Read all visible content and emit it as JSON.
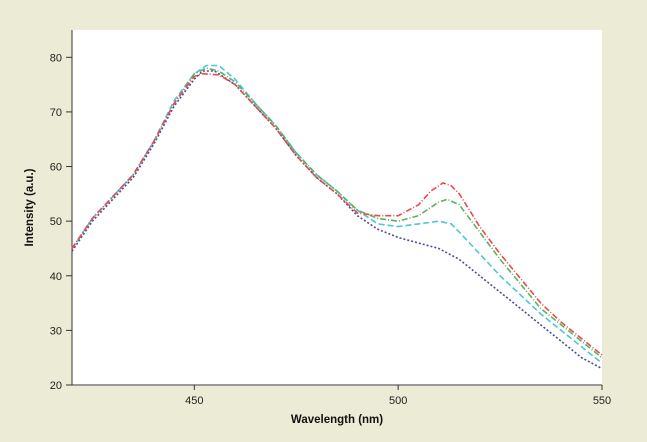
{
  "chart_data": {
    "type": "line",
    "title": "",
    "xlabel": "Wavelength (nm)",
    "ylabel": "Intensity (a.u.)",
    "xlim": [
      420,
      550
    ],
    "ylim": [
      20,
      85
    ],
    "x_ticks": [
      450,
      500,
      550
    ],
    "y_ticks": [
      20,
      30,
      40,
      50,
      60,
      70,
      80
    ],
    "grid": false,
    "legend": "none",
    "series": [
      {
        "color": "#4b4b9c",
        "dash": "2,2",
        "points": [
          [
            420,
            44.5
          ],
          [
            425,
            50
          ],
          [
            430,
            54
          ],
          [
            435,
            58
          ],
          [
            440,
            64
          ],
          [
            445,
            71
          ],
          [
            450,
            76
          ],
          [
            452,
            77.5
          ],
          [
            455,
            77.5
          ],
          [
            460,
            75
          ],
          [
            465,
            71
          ],
          [
            470,
            67
          ],
          [
            475,
            62
          ],
          [
            480,
            58
          ],
          [
            485,
            55
          ],
          [
            490,
            51
          ],
          [
            495,
            48.5
          ],
          [
            500,
            47
          ],
          [
            505,
            46
          ],
          [
            510,
            45
          ],
          [
            515,
            43
          ],
          [
            520,
            40
          ],
          [
            525,
            37
          ],
          [
            530,
            34
          ],
          [
            535,
            31
          ],
          [
            540,
            28
          ],
          [
            545,
            25
          ],
          [
            550,
            23
          ]
        ]
      },
      {
        "color": "#4cc6d8",
        "dash": "6,3",
        "points": [
          [
            420,
            45
          ],
          [
            425,
            50.5
          ],
          [
            430,
            54.5
          ],
          [
            435,
            58.5
          ],
          [
            440,
            64.5
          ],
          [
            445,
            72
          ],
          [
            450,
            77
          ],
          [
            453,
            78.5
          ],
          [
            456,
            78.5
          ],
          [
            460,
            76
          ],
          [
            465,
            71.5
          ],
          [
            470,
            67.5
          ],
          [
            475,
            62.5
          ],
          [
            480,
            58.5
          ],
          [
            485,
            55.5
          ],
          [
            490,
            52
          ],
          [
            495,
            49.5
          ],
          [
            500,
            49
          ],
          [
            505,
            49.5
          ],
          [
            510,
            50
          ],
          [
            513,
            49.5
          ],
          [
            515,
            48
          ],
          [
            520,
            44
          ],
          [
            525,
            40
          ],
          [
            530,
            36.5
          ],
          [
            535,
            33
          ],
          [
            540,
            30
          ],
          [
            545,
            27
          ],
          [
            550,
            24
          ]
        ]
      },
      {
        "color": "#5cb25c",
        "dash": "6,2,1,2",
        "points": [
          [
            420,
            45
          ],
          [
            425,
            50.5
          ],
          [
            430,
            54.5
          ],
          [
            435,
            58.5
          ],
          [
            440,
            64.5
          ],
          [
            445,
            71.5
          ],
          [
            450,
            77
          ],
          [
            453,
            78
          ],
          [
            456,
            77.5
          ],
          [
            460,
            75.5
          ],
          [
            465,
            71.5
          ],
          [
            470,
            67.5
          ],
          [
            475,
            62.5
          ],
          [
            480,
            58.5
          ],
          [
            485,
            55.5
          ],
          [
            490,
            52
          ],
          [
            495,
            50.5
          ],
          [
            500,
            50
          ],
          [
            505,
            51
          ],
          [
            510,
            53.5
          ],
          [
            512,
            54
          ],
          [
            515,
            53
          ],
          [
            520,
            48
          ],
          [
            525,
            43
          ],
          [
            530,
            38.5
          ],
          [
            535,
            34
          ],
          [
            540,
            31
          ],
          [
            545,
            28
          ],
          [
            550,
            25
          ]
        ]
      },
      {
        "color": "#e84b4b",
        "dash": "6,2,1,2",
        "points": [
          [
            420,
            45
          ],
          [
            425,
            50.5
          ],
          [
            430,
            54.5
          ],
          [
            435,
            58.5
          ],
          [
            440,
            64.5
          ],
          [
            445,
            71.5
          ],
          [
            450,
            76.5
          ],
          [
            452,
            77
          ],
          [
            456,
            76.8
          ],
          [
            460,
            75
          ],
          [
            465,
            71
          ],
          [
            470,
            67
          ],
          [
            475,
            62
          ],
          [
            480,
            58
          ],
          [
            485,
            55
          ],
          [
            490,
            51.5
          ],
          [
            495,
            51
          ],
          [
            500,
            51
          ],
          [
            505,
            53
          ],
          [
            508,
            55.5
          ],
          [
            511,
            57
          ],
          [
            513,
            56.5
          ],
          [
            515,
            55
          ],
          [
            520,
            49
          ],
          [
            525,
            44
          ],
          [
            530,
            39.5
          ],
          [
            535,
            35
          ],
          [
            540,
            31.5
          ],
          [
            545,
            28.5
          ],
          [
            550,
            25.5
          ]
        ]
      }
    ]
  }
}
